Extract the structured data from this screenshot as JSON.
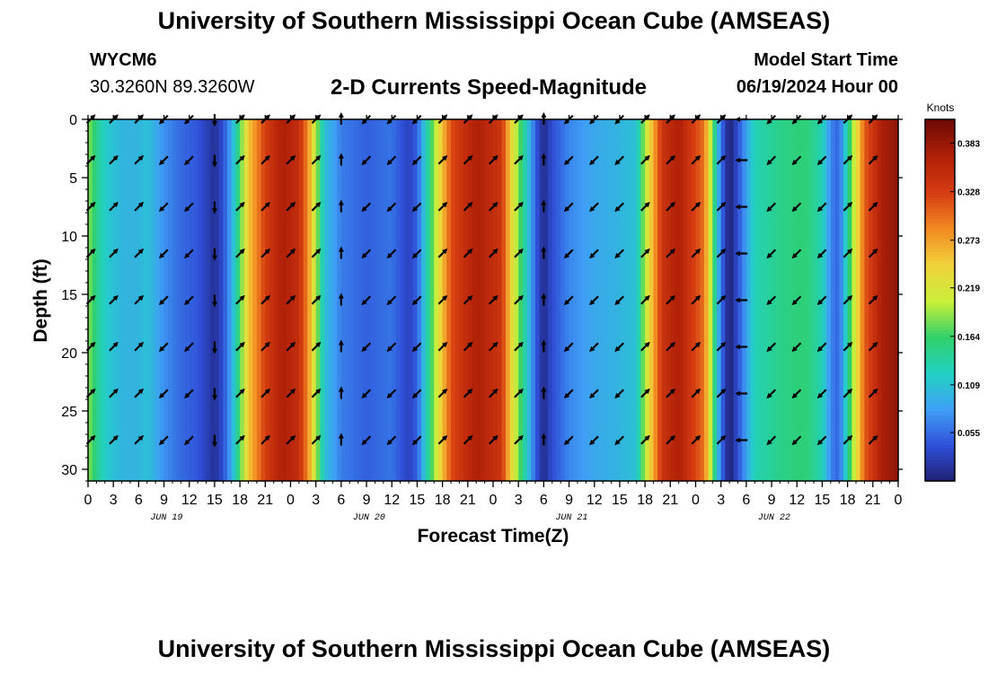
{
  "title": "University of Southern Mississippi Ocean Cube (AMSEAS)",
  "station": {
    "id": "WYCM6",
    "coords": "30.3260N  89.3260W"
  },
  "subtitle": "2-D Currents Speed-Magnitude",
  "model_start": {
    "label": "Model Start Time",
    "value": "06/19/2024 Hour 00"
  },
  "colors": {
    "scale": [
      "#1f1f6e",
      "#2f4fd8",
      "#3f9ef5",
      "#22d1c4",
      "#2fd06a",
      "#c9ef3a",
      "#f0d23a",
      "#f28a22",
      "#d63d12",
      "#b02008",
      "#6e0b05"
    ]
  },
  "chart_data": {
    "type": "heatmap",
    "xlabel": "Forecast Time(Z)",
    "ylabel": "Depth (ft)",
    "x_ticks": [
      "0",
      "3",
      "6",
      "9",
      "12",
      "15",
      "18",
      "21",
      "0",
      "3",
      "6",
      "9",
      "12",
      "15",
      "18",
      "21",
      "0",
      "3",
      "6",
      "9",
      "12",
      "15",
      "18",
      "21",
      "0",
      "3",
      "6",
      "9",
      "12",
      "15",
      "18",
      "21",
      "0"
    ],
    "x_range_hours": [
      0,
      96
    ],
    "day_labels": [
      "JUN 19",
      "JUN 20",
      "JUN 21",
      "JUN 22"
    ],
    "y_ticks": [
      0,
      5,
      10,
      15,
      20,
      25,
      30
    ],
    "ylim": [
      0,
      31
    ],
    "colorbar": {
      "title": "Knots",
      "ticks": [
        "0.383",
        "0.328",
        "0.273",
        "0.219",
        "0.164",
        "0.109",
        "0.055"
      ],
      "range": [
        0,
        0.41
      ]
    },
    "speed_profile_by_hour": [
      {
        "h": 0,
        "v": 0.19
      },
      {
        "h": 1,
        "v": 0.15
      },
      {
        "h": 2,
        "v": 0.12
      },
      {
        "h": 4,
        "v": 0.1
      },
      {
        "h": 6,
        "v": 0.1
      },
      {
        "h": 7,
        "v": 0.11
      },
      {
        "h": 9,
        "v": 0.075
      },
      {
        "h": 11,
        "v": 0.055
      },
      {
        "h": 13,
        "v": 0.045
      },
      {
        "h": 14,
        "v": 0.03
      },
      {
        "h": 15,
        "v": 0.015
      },
      {
        "h": 16,
        "v": 0.04
      },
      {
        "h": 17,
        "v": 0.09
      },
      {
        "h": 18,
        "v": 0.17
      },
      {
        "h": 19,
        "v": 0.25
      },
      {
        "h": 21,
        "v": 0.33
      },
      {
        "h": 23,
        "v": 0.37
      },
      {
        "h": 25,
        "v": 0.35
      },
      {
        "h": 26,
        "v": 0.29
      },
      {
        "h": 27,
        "v": 0.2
      },
      {
        "h": 28,
        "v": 0.11
      },
      {
        "h": 30,
        "v": 0.065
      },
      {
        "h": 33,
        "v": 0.05
      },
      {
        "h": 36,
        "v": 0.06
      },
      {
        "h": 38,
        "v": 0.03
      },
      {
        "h": 39,
        "v": 0.05
      },
      {
        "h": 40,
        "v": 0.12
      },
      {
        "h": 41,
        "v": 0.19
      },
      {
        "h": 43,
        "v": 0.32
      },
      {
        "h": 46,
        "v": 0.37
      },
      {
        "h": 49,
        "v": 0.34
      },
      {
        "h": 50,
        "v": 0.25
      },
      {
        "h": 52,
        "v": 0.12
      },
      {
        "h": 53,
        "v": 0.05
      },
      {
        "h": 54,
        "v": 0.01
      },
      {
        "h": 55,
        "v": 0.04
      },
      {
        "h": 57,
        "v": 0.07
      },
      {
        "h": 60,
        "v": 0.09
      },
      {
        "h": 63,
        "v": 0.1
      },
      {
        "h": 65,
        "v": 0.11
      },
      {
        "h": 66,
        "v": 0.2
      },
      {
        "h": 68,
        "v": 0.34
      },
      {
        "h": 70,
        "v": 0.37
      },
      {
        "h": 73,
        "v": 0.3
      },
      {
        "h": 74,
        "v": 0.18
      },
      {
        "h": 75,
        "v": 0.06
      },
      {
        "h": 76,
        "v": 0.0
      },
      {
        "h": 77,
        "v": 0.04
      },
      {
        "h": 79,
        "v": 0.13
      },
      {
        "h": 82,
        "v": 0.15
      },
      {
        "h": 85,
        "v": 0.16
      },
      {
        "h": 87,
        "v": 0.13
      },
      {
        "h": 88,
        "v": 0.07
      },
      {
        "h": 89,
        "v": 0.05
      },
      {
        "h": 90,
        "v": 0.14
      },
      {
        "h": 92,
        "v": 0.31
      },
      {
        "h": 94,
        "v": 0.37
      },
      {
        "h": 96,
        "v": 0.39
      }
    ],
    "vector_depths_ft": [
      0,
      3.5,
      7.5,
      11.5,
      15.5,
      19.5,
      23.5,
      27.5
    ],
    "vector_columns": [
      {
        "h": 0.3,
        "dir": "NE"
      },
      {
        "h": 3,
        "dir": "NE"
      },
      {
        "h": 6,
        "dir": "NE"
      },
      {
        "h": 9,
        "dir": "SW"
      },
      {
        "h": 12,
        "dir": "SW"
      },
      {
        "h": 15,
        "dir": "S"
      },
      {
        "h": 18,
        "dir": "NE"
      },
      {
        "h": 21,
        "dir": "NE"
      },
      {
        "h": 24,
        "dir": "NE"
      },
      {
        "h": 27,
        "dir": "NE"
      },
      {
        "h": 30,
        "dir": "N"
      },
      {
        "h": 33,
        "dir": "SW"
      },
      {
        "h": 36,
        "dir": "SW"
      },
      {
        "h": 39,
        "dir": "SW"
      },
      {
        "h": 42,
        "dir": "NE"
      },
      {
        "h": 45,
        "dir": "NE"
      },
      {
        "h": 48,
        "dir": "NE"
      },
      {
        "h": 51,
        "dir": "NE"
      },
      {
        "h": 54,
        "dir": "N"
      },
      {
        "h": 57,
        "dir": "SW"
      },
      {
        "h": 60,
        "dir": "SW"
      },
      {
        "h": 63,
        "dir": "SW"
      },
      {
        "h": 66,
        "dir": "NE"
      },
      {
        "h": 69,
        "dir": "NE"
      },
      {
        "h": 72,
        "dir": "NE"
      },
      {
        "h": 75,
        "dir": "NE"
      },
      {
        "h": 77.5,
        "dir": "W"
      },
      {
        "h": 81,
        "dir": "SW"
      },
      {
        "h": 84,
        "dir": "SW"
      },
      {
        "h": 87,
        "dir": "SW"
      },
      {
        "h": 90,
        "dir": "NE"
      },
      {
        "h": 93,
        "dir": "NE"
      }
    ]
  }
}
